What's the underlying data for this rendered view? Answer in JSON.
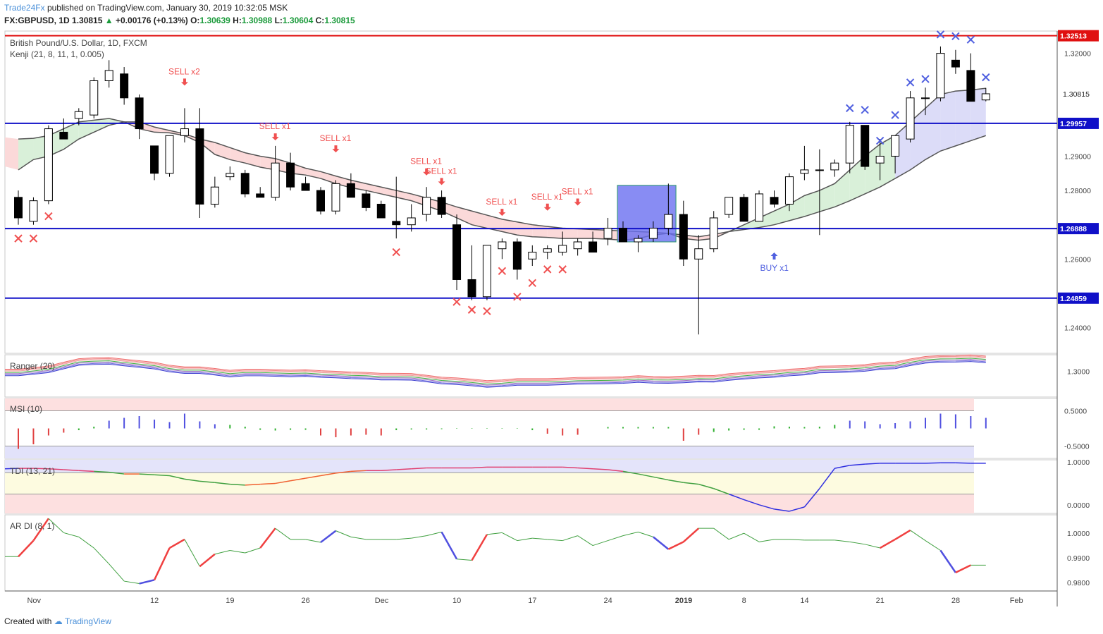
{
  "header": {
    "publisher": "Trade24Fx",
    "published_text": "published on TradingView.com, January 30, 2019 10:32:05 MSK",
    "symbol": "FX:GBPUSD, 1D",
    "close_value": "1.30815",
    "change": "+0.00176 (+0.13%)",
    "open_label": "O:",
    "open": "1.30639",
    "high_label": "H:",
    "high": "1.30988",
    "low_label": "L:",
    "low": "1.30604",
    "close_label": "C:",
    "close": "1.30815"
  },
  "footer": {
    "created_with": "Created with",
    "brand": "TradingView"
  },
  "colors": {
    "up": "#ffffff",
    "down": "#000000",
    "hline": "#1010c8",
    "resist": "#e01010",
    "sell": "#f05050",
    "buy": "#5060e0",
    "cross_red": "#f05050",
    "cross_blue": "#5060e0"
  },
  "chart_data": [
    {
      "type": "candlestick",
      "title": "British Pound/U.S. Dollar, 1D, FXCM",
      "subtitle": "Kenji (21, 8, 11, 1, 0.005)",
      "ylim": [
        1.2325,
        1.3265
      ],
      "y_ticks": [
        "1.24000",
        "1.26000",
        "1.28000",
        "1.29000",
        "1.32000"
      ],
      "x_ticks": [
        {
          "i": 1,
          "label": "Nov"
        },
        {
          "i": 9,
          "label": "12"
        },
        {
          "i": 14,
          "label": "19"
        },
        {
          "i": 19,
          "label": "26"
        },
        {
          "i": 24,
          "label": "Dec"
        },
        {
          "i": 29,
          "label": "10"
        },
        {
          "i": 34,
          "label": "17"
        },
        {
          "i": 39,
          "label": "24"
        },
        {
          "i": 44,
          "label": "2019"
        },
        {
          "i": 48,
          "label": "8"
        },
        {
          "i": 52,
          "label": "14"
        },
        {
          "i": 57,
          "label": "21"
        },
        {
          "i": 62,
          "label": "28"
        },
        {
          "i": 66,
          "label": "Feb"
        }
      ],
      "candles": [
        [
          1.278,
          1.28,
          1.27,
          1.272
        ],
        [
          1.271,
          1.278,
          1.27,
          1.277
        ],
        [
          1.277,
          1.299,
          1.276,
          1.298
        ],
        [
          1.297,
          1.301,
          1.295,
          1.295
        ],
        [
          1.301,
          1.304,
          1.299,
          1.303
        ],
        [
          1.302,
          1.313,
          1.301,
          1.312
        ],
        [
          1.312,
          1.318,
          1.31,
          1.315
        ],
        [
          1.314,
          1.316,
          1.305,
          1.307
        ],
        [
          1.307,
          1.308,
          1.295,
          1.298
        ],
        [
          1.293,
          1.293,
          1.283,
          1.285
        ],
        [
          1.285,
          1.296,
          1.284,
          1.296
        ],
        [
          1.296,
          1.304,
          1.294,
          1.298
        ],
        [
          1.298,
          1.304,
          1.272,
          1.276
        ],
        [
          1.276,
          1.284,
          1.275,
          1.281
        ],
        [
          1.284,
          1.287,
          1.283,
          1.285
        ],
        [
          1.285,
          1.286,
          1.278,
          1.279
        ],
        [
          1.279,
          1.281,
          1.278,
          1.278
        ],
        [
          1.278,
          1.293,
          1.277,
          1.288
        ],
        [
          1.288,
          1.291,
          1.28,
          1.281
        ],
        [
          1.282,
          1.284,
          1.28,
          1.28
        ],
        [
          1.28,
          1.281,
          1.273,
          1.274
        ],
        [
          1.274,
          1.283,
          1.273,
          1.282
        ],
        [
          1.282,
          1.285,
          1.278,
          1.278
        ],
        [
          1.279,
          1.28,
          1.274,
          1.275
        ],
        [
          1.276,
          1.277,
          1.272,
          1.272
        ],
        [
          1.271,
          1.284,
          1.266,
          1.27
        ],
        [
          1.27,
          1.276,
          1.268,
          1.272
        ],
        [
          1.273,
          1.281,
          1.271,
          1.278
        ],
        [
          1.278,
          1.28,
          1.272,
          1.273
        ],
        [
          1.27,
          1.273,
          1.251,
          1.254
        ],
        [
          1.254,
          1.264,
          1.248,
          1.249
        ],
        [
          1.249,
          1.264,
          1.248,
          1.264
        ],
        [
          1.263,
          1.266,
          1.26,
          1.265
        ],
        [
          1.265,
          1.266,
          1.254,
          1.257
        ],
        [
          1.26,
          1.264,
          1.258,
          1.262
        ],
        [
          1.262,
          1.264,
          1.26,
          1.263
        ],
        [
          1.262,
          1.268,
          1.261,
          1.264
        ],
        [
          1.263,
          1.266,
          1.261,
          1.265
        ],
        [
          1.265,
          1.268,
          1.262,
          1.262
        ],
        [
          1.266,
          1.272,
          1.264,
          1.269
        ],
        [
          1.269,
          1.271,
          1.265,
          1.265
        ],
        [
          1.265,
          1.267,
          1.262,
          1.266
        ],
        [
          1.266,
          1.271,
          1.265,
          1.269
        ],
        [
          1.269,
          1.282,
          1.267,
          1.273
        ],
        [
          1.273,
          1.277,
          1.258,
          1.26
        ],
        [
          1.26,
          1.267,
          1.238,
          1.263
        ],
        [
          1.263,
          1.274,
          1.262,
          1.272
        ],
        [
          1.273,
          1.278,
          1.272,
          1.278
        ],
        [
          1.278,
          1.279,
          1.271,
          1.271
        ],
        [
          1.271,
          1.28,
          1.271,
          1.279
        ],
        [
          1.278,
          1.28,
          1.275,
          1.276
        ],
        [
          1.276,
          1.285,
          1.274,
          1.284
        ],
        [
          1.285,
          1.293,
          1.283,
          1.286
        ],
        [
          1.286,
          1.292,
          1.267,
          1.286
        ],
        [
          1.286,
          1.289,
          1.284,
          1.288
        ],
        [
          1.288,
          1.3,
          1.285,
          1.299
        ],
        [
          1.299,
          1.299,
          1.286,
          1.287
        ],
        [
          1.288,
          1.295,
          1.283,
          1.29
        ],
        [
          1.29,
          1.296,
          1.285,
          1.296
        ],
        [
          1.295,
          1.309,
          1.294,
          1.307
        ],
        [
          1.307,
          1.31,
          1.302,
          1.307
        ],
        [
          1.307,
          1.322,
          1.306,
          1.32
        ],
        [
          1.318,
          1.321,
          1.314,
          1.316
        ],
        [
          1.315,
          1.32,
          1.306,
          1.306
        ],
        [
          1.3064,
          1.3099,
          1.306,
          1.3082
        ]
      ],
      "x_start": 0,
      "kenji_fast": [
        1.295,
        1.2952,
        1.296,
        1.298,
        1.3,
        1.3005,
        1.301,
        1.3,
        1.298,
        1.297,
        1.2968,
        1.296,
        1.294,
        1.2905,
        1.289,
        1.288,
        1.2868,
        1.286,
        1.285,
        1.2845,
        1.2835,
        1.282,
        1.2808,
        1.28,
        1.279,
        1.278,
        1.277,
        1.2755,
        1.274,
        1.272,
        1.27,
        1.269,
        1.268,
        1.267,
        1.2665,
        1.2663,
        1.266,
        1.266,
        1.266,
        1.2658,
        1.2655,
        1.266,
        1.267,
        1.2675,
        1.266,
        1.2655,
        1.266,
        1.268,
        1.27,
        1.272,
        1.274,
        1.276,
        1.2785,
        1.28,
        1.282,
        1.286,
        1.29,
        1.2935,
        1.296,
        1.3,
        1.304,
        1.308,
        1.309,
        1.3093,
        1.3098
      ],
      "kenji_slow": [
        1.286,
        1.289,
        1.29,
        1.292,
        1.295,
        1.297,
        1.299,
        1.3,
        1.3,
        1.2985,
        1.2975,
        1.2965,
        1.295,
        1.294,
        1.2925,
        1.291,
        1.29,
        1.2893,
        1.288,
        1.2865,
        1.2855,
        1.2842,
        1.283,
        1.282,
        1.281,
        1.28,
        1.279,
        1.2778,
        1.2766,
        1.2752,
        1.274,
        1.2728,
        1.2716,
        1.2708,
        1.27,
        1.2695,
        1.269,
        1.2688,
        1.2686,
        1.2684,
        1.2682,
        1.268,
        1.2678,
        1.2675,
        1.267,
        1.2665,
        1.2672,
        1.268,
        1.2686,
        1.2692,
        1.27,
        1.2712,
        1.2724,
        1.2738,
        1.2752,
        1.277,
        1.279,
        1.281,
        1.2835,
        1.286,
        1.289,
        1.2915,
        1.293,
        1.2945,
        1.296
      ],
      "h_lines": [
        {
          "value": 1.32513,
          "label": "1.32513",
          "color": "#e01010"
        },
        {
          "value": 1.29957,
          "label": "1.29957",
          "color": "#1010c8"
        },
        {
          "value": 1.26888,
          "label": "1.26888",
          "color": "#1010c8"
        },
        {
          "value": 1.24859,
          "label": "1.24859",
          "color": "#1010c8"
        }
      ],
      "last_price_label": "1.30815",
      "signals": [
        {
          "i": 11,
          "text": "SELL x2",
          "kind": "sell",
          "y": 1.311
        },
        {
          "i": 17,
          "text": "SELL x1",
          "kind": "sell",
          "y": 1.295
        },
        {
          "i": 21,
          "text": "SELL x1",
          "kind": "sell",
          "y": 1.2915
        },
        {
          "i": 27,
          "text": "SELL x1",
          "kind": "sell",
          "y": 1.2848
        },
        {
          "i": 28,
          "text": "SELL x1",
          "kind": "sell",
          "y": 1.282
        },
        {
          "i": 32,
          "text": "SELL x1",
          "kind": "sell",
          "y": 1.273
        },
        {
          "i": 35,
          "text": "SELL x1",
          "kind": "sell",
          "y": 1.2745
        },
        {
          "i": 37,
          "text": "SELL x1",
          "kind": "sell",
          "y": 1.276
        },
        {
          "i": 50,
          "text": "BUY x1",
          "kind": "buy",
          "y": 1.2615
        }
      ],
      "crosses_red": [
        [
          0,
          1.266
        ],
        [
          1,
          1.266
        ],
        [
          2,
          1.2725
        ],
        [
          25,
          1.262
        ],
        [
          29,
          1.2475
        ],
        [
          30,
          1.2452
        ],
        [
          31,
          1.2448
        ],
        [
          32,
          1.2565
        ],
        [
          33,
          1.249
        ],
        [
          34,
          1.253
        ],
        [
          35,
          1.257
        ],
        [
          36,
          1.257
        ]
      ],
      "crosses_blue": [
        [
          55,
          1.304
        ],
        [
          56,
          1.3035
        ],
        [
          57,
          1.2945
        ],
        [
          58,
          1.302
        ],
        [
          59,
          1.3115
        ],
        [
          60,
          1.3125
        ],
        [
          61,
          1.3255
        ],
        [
          62,
          1.325
        ],
        [
          63,
          1.324
        ],
        [
          64,
          1.313
        ]
      ],
      "box": {
        "i0": 40,
        "i1": 43.5,
        "y0": 1.265,
        "y1": 1.2815
      }
    },
    {
      "type": "line",
      "title": "Ranger (20)",
      "y_ticks": [
        "1.3000"
      ],
      "ylim": [
        1.245,
        1.335
      ]
    },
    {
      "type": "bar",
      "title": "MSI (10)",
      "y_ticks": [
        "0.5000",
        "-0.5000"
      ],
      "ylim": [
        -0.85,
        0.85
      ],
      "values": [
        -0.58,
        -0.45,
        -0.2,
        -0.12,
        -0.05,
        0.05,
        0.22,
        0.3,
        0.35,
        0.25,
        0.18,
        0.42,
        0.2,
        0.12,
        0.1,
        0.05,
        -0.04,
        -0.06,
        -0.04,
        -0.04,
        -0.2,
        -0.25,
        -0.2,
        -0.18,
        -0.2,
        -0.05,
        -0.03,
        -0.03,
        -0.02,
        -0.01,
        0.01,
        0.01,
        0.01,
        0.01,
        -0.05,
        -0.15,
        -0.2,
        -0.18,
        0,
        0.04,
        0.04,
        0.04,
        0.04,
        0.04,
        -0.35,
        -0.18,
        -0.1,
        -0.06,
        -0.04,
        -0.04,
        0.06,
        0.05,
        0.04,
        0.05,
        0.1,
        0.22,
        0.2,
        0.12,
        0.15,
        0.2,
        0.3,
        0.42,
        0.4,
        0.35,
        0.3
      ]
    },
    {
      "type": "line",
      "title": "TDI (13, 21)",
      "y_ticks": [
        "1.0000",
        "0.0000"
      ],
      "ylim": [
        -0.2,
        1.05
      ],
      "values": [
        0.85,
        0.85,
        0.84,
        0.82,
        0.8,
        0.78,
        0.76,
        0.72,
        0.72,
        0.7,
        0.68,
        0.6,
        0.55,
        0.52,
        0.48,
        0.46,
        0.48,
        0.5,
        0.56,
        0.62,
        0.68,
        0.74,
        0.78,
        0.8,
        0.8,
        0.82,
        0.84,
        0.86,
        0.86,
        0.86,
        0.86,
        0.88,
        0.88,
        0.88,
        0.88,
        0.88,
        0.88,
        0.86,
        0.84,
        0.82,
        0.78,
        0.72,
        0.65,
        0.58,
        0.52,
        0.48,
        0.38,
        0.25,
        0.12,
        0.0,
        -0.1,
        -0.15,
        -0.05,
        0.38,
        0.85,
        0.92,
        0.95,
        0.97,
        0.97,
        0.97,
        0.97,
        0.98,
        0.98,
        0.97,
        0.97
      ]
    },
    {
      "type": "line",
      "title": "AR DI (8, 1)",
      "y_ticks": [
        "1.0000",
        "0.9900",
        "0.9800"
      ],
      "ylim": [
        0.9765,
        1.0075
      ],
      "values": [
        0.9905,
        0.997,
        1.006,
        1.0002,
        0.9985,
        0.994,
        0.9875,
        0.9805,
        0.9795,
        0.981,
        0.994,
        0.9975,
        0.9865,
        0.9915,
        0.993,
        0.992,
        0.994,
        1.002,
        0.9975,
        0.9975,
        0.9963,
        1.001,
        0.9985,
        0.9975,
        0.9975,
        0.9975,
        0.998,
        0.999,
        1.0005,
        0.9895,
        0.989,
        0.9995,
        1.0002,
        0.997,
        0.998,
        0.9975,
        0.997,
        0.999,
        0.995,
        0.997,
        0.999,
        1.0005,
        0.9985,
        0.9935,
        0.9965,
        1.002,
        1.002,
        0.9975,
        1.0,
        0.9965,
        0.9975,
        0.9975,
        0.9972,
        0.9972,
        0.9972,
        0.9965,
        0.9955,
        0.994,
        0.9975,
        1.0012,
        0.997,
        0.993,
        0.984,
        0.987,
        0.987
      ]
    }
  ]
}
